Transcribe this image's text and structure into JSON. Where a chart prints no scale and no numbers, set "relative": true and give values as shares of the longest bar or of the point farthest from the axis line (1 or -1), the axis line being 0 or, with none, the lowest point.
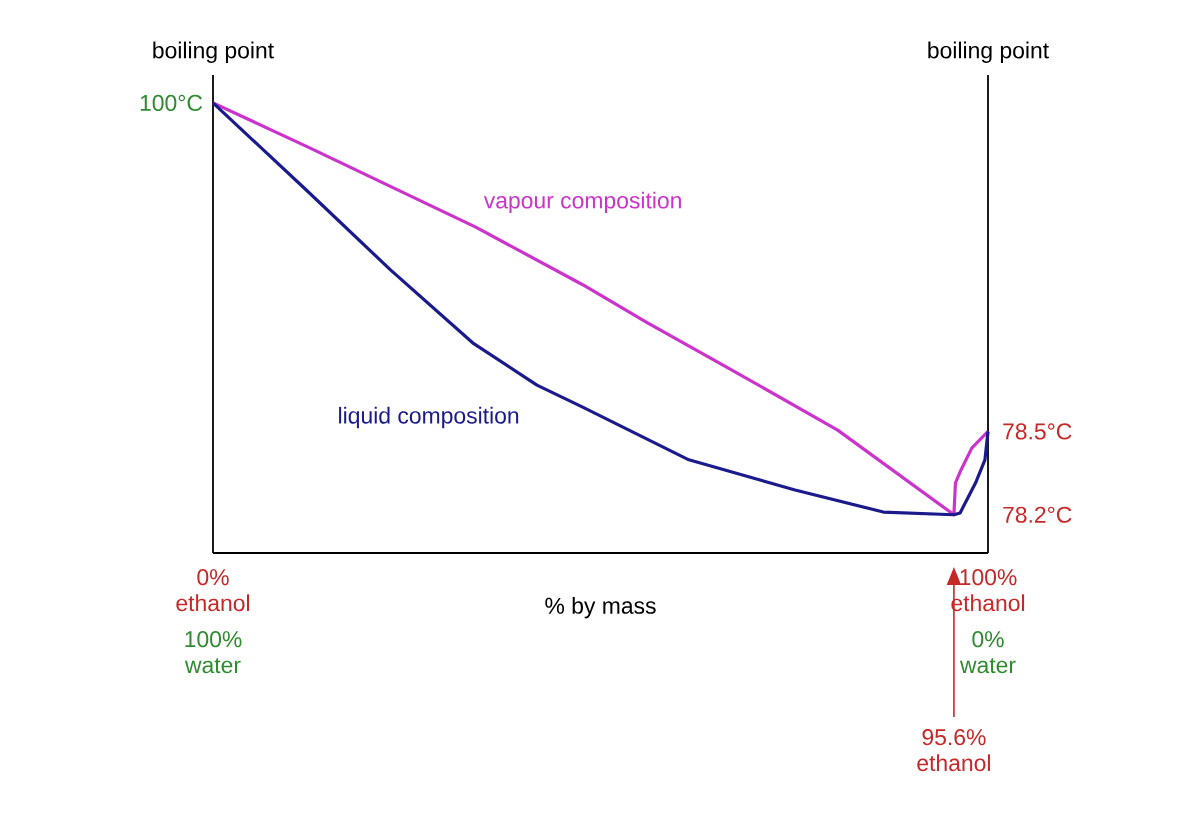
{
  "chart_data": {
    "type": "line",
    "relative": true,
    "ylabel": "boiling point",
    "y2label": "boiling point",
    "xlabel": "% by mass",
    "xlim": [
      0,
      100
    ],
    "xticks": [
      {
        "value": 0,
        "label": "0% ethanol"
      },
      {
        "value": 100,
        "label": "100% ethanol"
      }
    ],
    "series": [
      {
        "name": "vapour composition",
        "color": "#cc33cc",
        "x": [
          0,
          12.0,
          33.9,
          47.7,
          55.9,
          66.9,
          80.6,
          95.6,
          95.8,
          96.5,
          97.9,
          100
        ],
        "values": [
          1,
          0.904,
          0.724,
          0.596,
          0.513,
          0.407,
          0.273,
          0.085,
          0.156,
          0.184,
          0.233,
          0.27
        ]
      },
      {
        "name": "liquid composition",
        "color": "#1a1a8c",
        "x": [
          0,
          5.1,
          12.0,
          22.9,
          33.5,
          41.8,
          47.7,
          61.4,
          75.1,
          86.5,
          95.6,
          96.4,
          98.4,
          99.6,
          100
        ],
        "values": [
          1,
          0.918,
          0.807,
          0.629,
          0.467,
          0.373,
          0.324,
          0.207,
          0.14,
          0.091,
          0.085,
          0.089,
          0.156,
          0.207,
          0.27
        ]
      }
    ],
    "annotations": [
      {
        "text": "100°C",
        "x": 0,
        "y": 1
      },
      {
        "text": "78.5°C",
        "x": 100,
        "y": 0.27
      },
      "78.2°C",
      "95.6% ethanol",
      "100% water",
      "0% water"
    ]
  }
}
